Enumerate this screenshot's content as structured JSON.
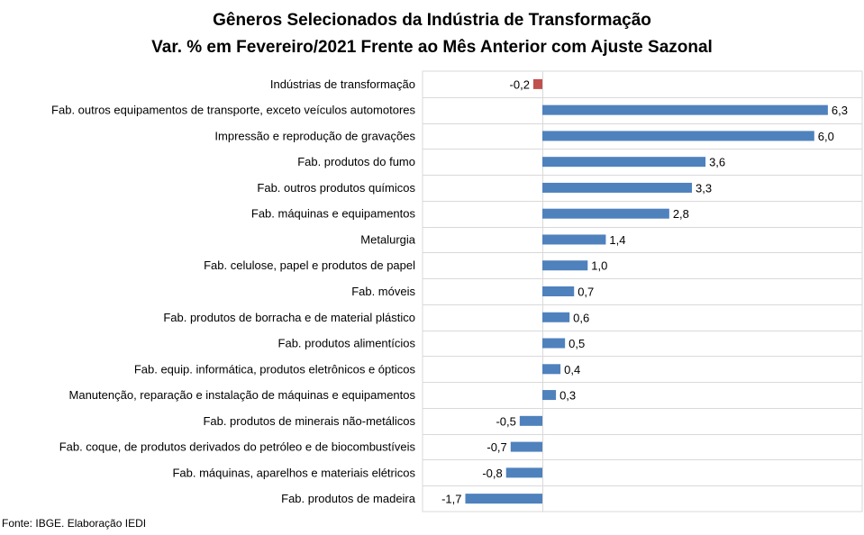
{
  "chart_data": {
    "type": "bar",
    "orientation": "horizontal",
    "title": "Gêneros Selecionados da Indústria de Transformação",
    "subtitle": "Var. % em Fevereiro/2021 Frente ao Mês Anterior com Ajuste Sazonal",
    "categories": [
      "Indústrias de transformação",
      "Fab. outros equipamentos de transporte, exceto veículos automotores",
      "Impressão e reprodução de gravações",
      "Fab. produtos do fumo",
      "Fab. outros produtos químicos",
      "Fab. máquinas e equipamentos",
      "Metalurgia",
      "Fab. celulose, papel e produtos de papel",
      "Fab. móveis",
      "Fab. produtos de borracha e de material plástico",
      "Fab. produtos alimentícios",
      "Fab. equip. informática, produtos eletrônicos e ópticos",
      "Manutenção, reparação e instalação de máquinas e equipamentos",
      "Fab. produtos de minerais não-metálicos",
      "Fab. coque, de produtos derivados do petróleo e de biocombustíveis",
      "Fab. máquinas, aparelhos e materiais elétricos",
      "Fab. produtos de madeira"
    ],
    "values": [
      -0.2,
      6.3,
      6.0,
      3.6,
      3.3,
      2.8,
      1.4,
      1.0,
      0.7,
      0.6,
      0.5,
      0.4,
      0.3,
      -0.5,
      -0.7,
      -0.8,
      -1.7
    ],
    "labels": [
      "-0,2",
      "6,3",
      "6,0",
      "3,6",
      "3,3",
      "2,8",
      "1,4",
      "1,0",
      "0,7",
      "0,6",
      "0,5",
      "0,4",
      "0,3",
      "-0,5",
      "-0,7",
      "-0,8",
      "-1,7"
    ],
    "colors": {
      "highlight": "#c0504d",
      "bars": "#4f81bd",
      "grid": "#d9d9d9"
    },
    "grid": true,
    "xlim": [
      -1.7,
      7.0
    ]
  },
  "source": "Fonte: IBGE. Elaboração IEDI"
}
